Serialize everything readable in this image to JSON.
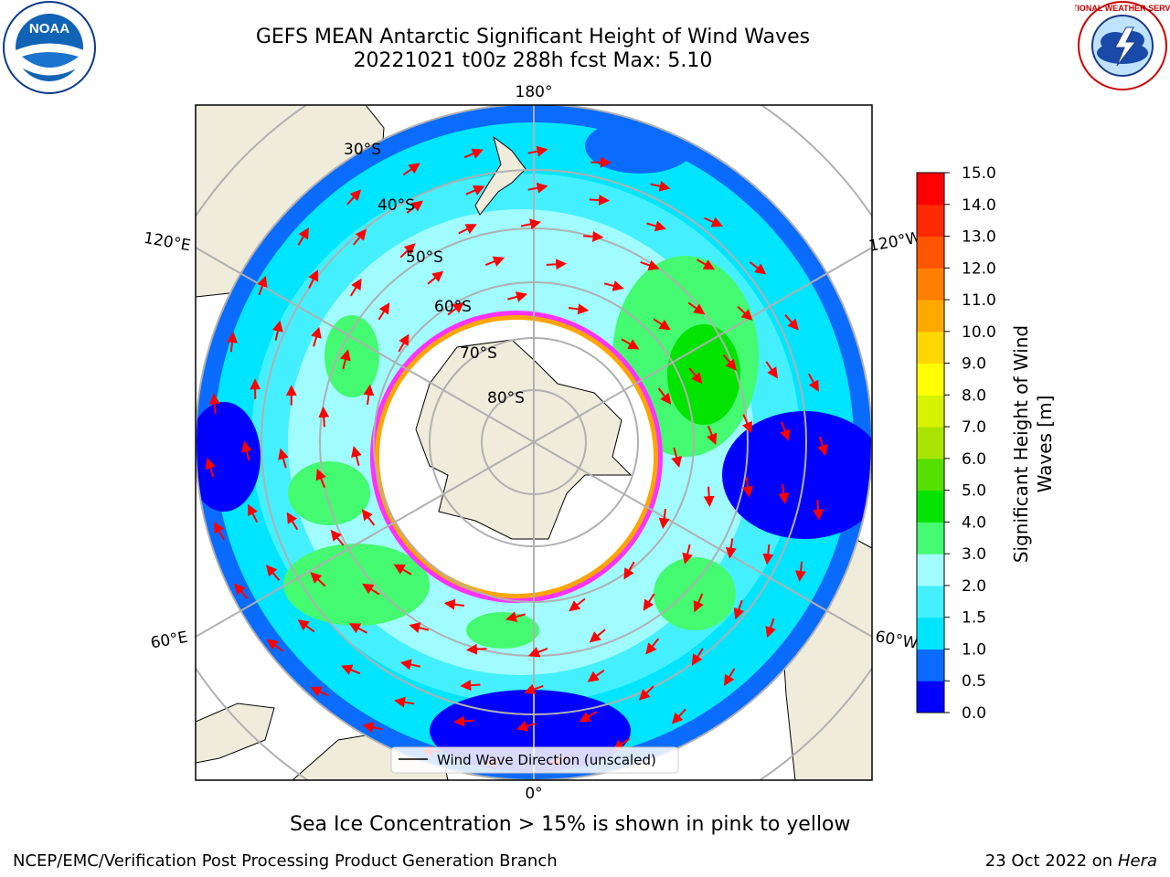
{
  "title": {
    "line1": "GEFS MEAN Antarctic Significant Height of Wind Waves",
    "line2": "20221021 t00z 288h fcst   Max: 5.10"
  },
  "logos": {
    "left": {
      "text": "NOAA",
      "icon": "noaa-logo"
    },
    "right": {
      "text": "NATIONAL WEATHER SERVICE",
      "icon": "nws-logo"
    }
  },
  "map": {
    "projection": "south-polar-stereographic",
    "longitude_labels": [
      "180°",
      "120°E",
      "120°W",
      "60°E",
      "60°W",
      "0°"
    ],
    "latitude_labels": [
      "30°S",
      "40°S",
      "50°S",
      "60°S",
      "70°S",
      "80°S"
    ],
    "legend_label": "Wind Wave Direction (unscaled)",
    "arrow_color": "#ff0000",
    "land_color": "#efecdc",
    "ice_edge_colors": [
      "#ff33ff",
      "#ffa500",
      "#ffff00"
    ]
  },
  "colorbar": {
    "label": "Significant Height of Wind Waves [m]",
    "ticks": [
      "0.0",
      "0.5",
      "1.0",
      "1.5",
      "2.0",
      "3.0",
      "4.0",
      "5.0",
      "6.0",
      "7.0",
      "8.0",
      "9.0",
      "10.0",
      "11.0",
      "12.0",
      "13.0",
      "14.0",
      "15.0"
    ],
    "colors": [
      "#0000ff",
      "#0a6cff",
      "#00e5ff",
      "#44f0ff",
      "#a0fcff",
      "#44fa70",
      "#00e400",
      "#55e000",
      "#a8e400",
      "#d6f200",
      "#ffff00",
      "#ffd700",
      "#ffa800",
      "#ff8000",
      "#ff5500",
      "#ff2a00",
      "#ff0000"
    ]
  },
  "footer": {
    "note": "Sea Ice Concentration > 15% is shown in pink to yellow",
    "credit": "NCEP/EMC/Verification Post Processing Product Generation Branch",
    "date": "23 Oct 2022 on",
    "host": "Hera"
  }
}
